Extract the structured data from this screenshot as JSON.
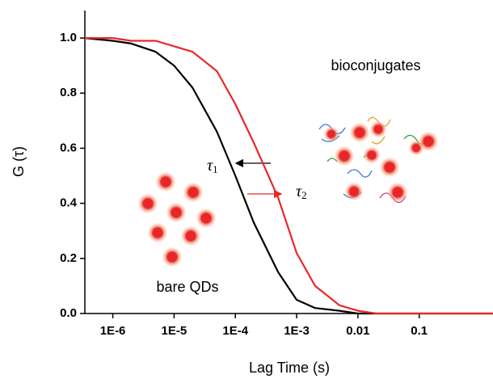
{
  "chart_data": {
    "type": "line",
    "x_label": "Lag Time (s)",
    "y_label": "G (τ)",
    "log_x": true,
    "x": [
      3.5e-07,
      1e-06,
      2e-06,
      5e-06,
      1e-05,
      2e-05,
      5e-05,
      0.0001,
      0.0002,
      0.0005,
      0.001,
      0.002,
      0.005,
      0.01,
      0.02,
      0.05,
      0.1,
      0.5,
      1.6
    ],
    "series": [
      {
        "color": "#000000",
        "values": [
          1.0,
          0.99,
          0.98,
          0.95,
          0.9,
          0.82,
          0.66,
          0.5,
          0.33,
          0.15,
          0.05,
          0.02,
          0.01,
          0.0,
          0.0,
          0.0,
          0.0,
          0.0,
          0.0
        ]
      },
      {
        "color": "#e8262a",
        "values": [
          1.0,
          1.0,
          0.99,
          0.99,
          0.97,
          0.95,
          0.88,
          0.76,
          0.62,
          0.42,
          0.22,
          0.1,
          0.03,
          0.01,
          0.0,
          0.0,
          0.0,
          0.0,
          0.0
        ]
      }
    ],
    "xlim": [
      3.5e-07,
      1.6
    ],
    "ylim": [
      0,
      1.1
    ],
    "xticks": [
      {
        "value": 1e-06,
        "label": "1E-6"
      },
      {
        "value": 1e-05,
        "label": "1E-5"
      },
      {
        "value": 0.0001,
        "label": "1E-4"
      },
      {
        "value": 0.001,
        "label": "1E-3"
      },
      0.01,
      0.1
    ],
    "yticks": [
      {
        "value": 0,
        "label": "0.0"
      },
      0.2,
      0.4,
      0.6,
      0.8,
      {
        "value": 1,
        "label": "1.0"
      }
    ],
    "annotations": {
      "bioconjugates": "bioconjugates",
      "bare": "bare QDs",
      "tau1": {
        "symbol": "τ",
        "sub": "1"
      },
      "tau2": {
        "symbol": "τ",
        "sub": "2"
      }
    }
  }
}
